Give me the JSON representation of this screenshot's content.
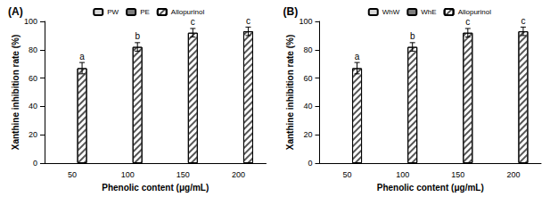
{
  "chart_data": [
    {
      "type": "bar",
      "title": "(A)",
      "categories": [
        "50",
        "100",
        "150",
        "200"
      ],
      "xlabel": "Phenolic content (μg/mL)",
      "ylabel": "Xanthine inhibition rate (%)",
      "ylim": [
        0,
        100
      ],
      "yticks": [
        0,
        20,
        40,
        60,
        80,
        100
      ],
      "grid": false,
      "legend": "top",
      "series": [
        {
          "name": "PW",
          "color": "#d9d9d9",
          "values": [
            null,
            null,
            null,
            null
          ]
        },
        {
          "name": "PE",
          "color": "#7f7f7f",
          "values": [
            null,
            null,
            null,
            null
          ]
        },
        {
          "name": "Allopurinol",
          "color": "#ffffff",
          "values": [
            67,
            82,
            92,
            93
          ],
          "errors": [
            4,
            3,
            3,
            3
          ],
          "annotations": [
            "a",
            "b",
            "c",
            "c"
          ]
        }
      ]
    },
    {
      "type": "bar",
      "title": "(B)",
      "categories": [
        "50",
        "100",
        "150",
        "200"
      ],
      "xlabel": "Phenolic content (μg/mL)",
      "ylabel": "Xanthine inhibition rate (%)",
      "ylim": [
        0,
        100
      ],
      "yticks": [
        0,
        20,
        40,
        60,
        80,
        100
      ],
      "grid": false,
      "legend": "top",
      "series": [
        {
          "name": "WhW",
          "color": "#d9d9d9",
          "values": [
            null,
            null,
            null,
            null
          ]
        },
        {
          "name": "WhE",
          "color": "#7f7f7f",
          "values": [
            null,
            null,
            null,
            null
          ]
        },
        {
          "name": "Allopurinol",
          "color": "#ffffff",
          "values": [
            67,
            82,
            92,
            93
          ],
          "errors": [
            4,
            3,
            3,
            3
          ],
          "annotations": [
            "a",
            "b",
            "c",
            "c"
          ]
        }
      ]
    }
  ]
}
